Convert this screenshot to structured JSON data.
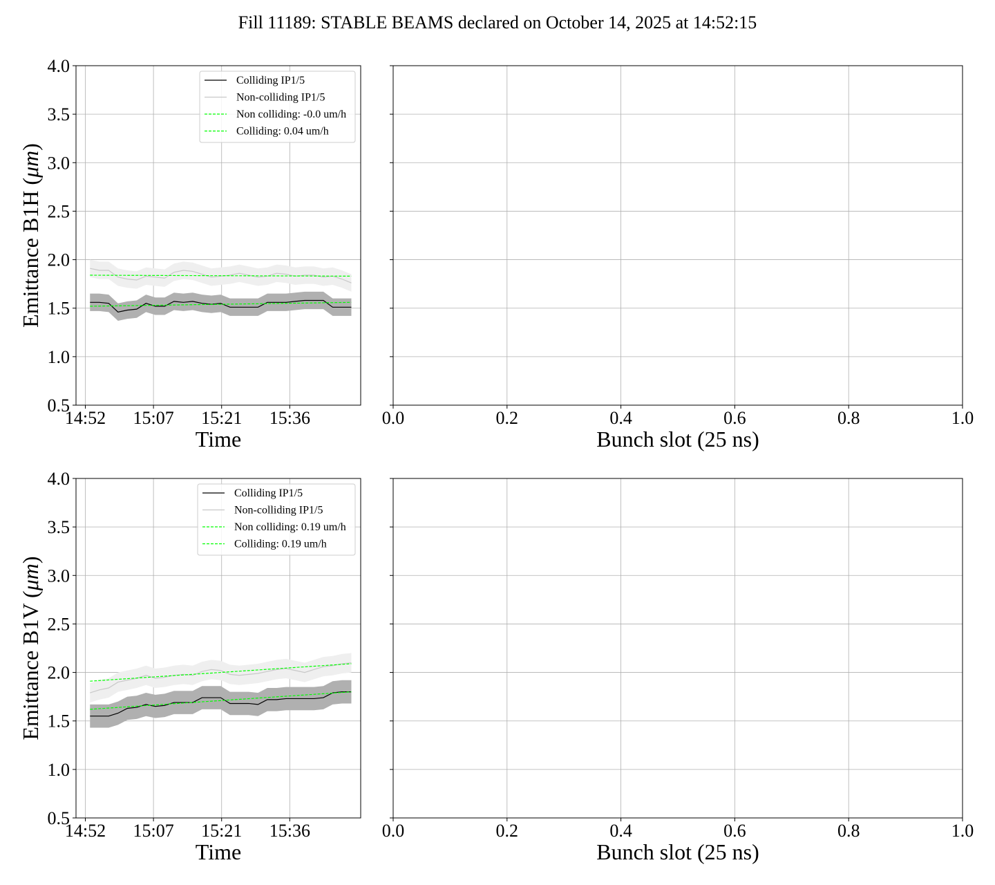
{
  "figure": {
    "title": "Fill 11189: STABLE BEAMS declared on October 14, 2025 at 14:52:15"
  },
  "chart_data": [
    {
      "id": "b1h-time",
      "type": "line",
      "xlabel": "Time",
      "ylabel": "Emittance B1H (μm)",
      "ylim": [
        0.5,
        4.0
      ],
      "yticks": [
        "0.5",
        "1.0",
        "1.5",
        "2.0",
        "2.5",
        "3.0",
        "3.5",
        "4.0"
      ],
      "xticks": [
        "14:52",
        "15:07",
        "15:21",
        "15:36"
      ],
      "xlim_minutes": [
        -2,
        59
      ],
      "grid": true,
      "legend_position": "top-right",
      "legend": [
        {
          "label": "Colliding IP1/5",
          "color": "#000000",
          "style": "solid"
        },
        {
          "label": "Non-colliding IP1/5",
          "color": "#c8c8c8",
          "style": "solid"
        },
        {
          "label": "Non colliding: -0.0 um/h",
          "color": "#00ff00",
          "style": "dashed"
        },
        {
          "label": "Colliding: 0.04 um/h",
          "color": "#00ff00",
          "style": "dashed"
        }
      ],
      "series": [
        {
          "name": "Colliding IP1/5",
          "color": "#000000",
          "band_color": "#b0b0b0",
          "x_minutes": [
            1,
            3,
            5,
            7,
            9,
            11,
            13,
            15,
            17,
            19,
            21,
            23,
            25,
            27,
            29,
            31,
            33,
            35,
            37,
            39,
            41,
            43,
            45,
            47,
            49,
            51,
            53,
            55,
            57
          ],
          "y": [
            1.56,
            1.56,
            1.55,
            1.46,
            1.48,
            1.49,
            1.55,
            1.52,
            1.52,
            1.57,
            1.56,
            1.57,
            1.55,
            1.54,
            1.55,
            1.51,
            1.51,
            1.51,
            1.51,
            1.56,
            1.56,
            1.56,
            1.57,
            1.58,
            1.58,
            1.58,
            1.51,
            1.51,
            1.51
          ],
          "band": 0.09
        },
        {
          "name": "Non-colliding IP1/5",
          "color": "#c8c8c8",
          "band_color": "#efefef",
          "x_minutes": [
            1,
            3,
            5,
            7,
            9,
            11,
            13,
            15,
            17,
            19,
            21,
            23,
            25,
            27,
            29,
            31,
            33,
            35,
            37,
            39,
            41,
            43,
            45,
            47,
            49,
            51,
            53,
            55,
            57
          ],
          "y": [
            1.91,
            1.89,
            1.89,
            1.82,
            1.8,
            1.79,
            1.83,
            1.82,
            1.81,
            1.87,
            1.89,
            1.88,
            1.85,
            1.82,
            1.83,
            1.84,
            1.86,
            1.84,
            1.82,
            1.83,
            1.86,
            1.85,
            1.83,
            1.84,
            1.84,
            1.82,
            1.83,
            1.8,
            1.76
          ],
          "band": 0.09
        },
        {
          "name": "Non colliding: -0.0 um/h",
          "color": "#00ff00",
          "dashed": true,
          "x_minutes": [
            1,
            57
          ],
          "y": [
            1.84,
            1.83
          ]
        },
        {
          "name": "Colliding: 0.04 um/h",
          "color": "#00ff00",
          "dashed": true,
          "x_minutes": [
            1,
            57
          ],
          "y": [
            1.52,
            1.56
          ]
        }
      ]
    },
    {
      "id": "b1h-bunch",
      "type": "scatter",
      "xlabel": "Bunch slot (25 ns)",
      "ylabel": "",
      "xlim": [
        0.0,
        1.0
      ],
      "ylim": [
        0.5,
        4.0
      ],
      "xticks": [
        "0.0",
        "0.2",
        "0.4",
        "0.6",
        "0.8",
        "1.0"
      ],
      "grid": true,
      "series": []
    },
    {
      "id": "b1v-time",
      "type": "line",
      "xlabel": "Time",
      "ylabel": "Emittance B1V (μm)",
      "ylim": [
        0.5,
        4.0
      ],
      "yticks": [
        "0.5",
        "1.0",
        "1.5",
        "2.0",
        "2.5",
        "3.0",
        "3.5",
        "4.0"
      ],
      "xticks": [
        "14:52",
        "15:07",
        "15:21",
        "15:36"
      ],
      "xlim_minutes": [
        -2,
        59
      ],
      "grid": true,
      "legend_position": "top-right",
      "legend": [
        {
          "label": "Colliding IP1/5",
          "color": "#000000",
          "style": "solid"
        },
        {
          "label": "Non-colliding IP1/5",
          "color": "#c8c8c8",
          "style": "solid"
        },
        {
          "label": "Non colliding: 0.19 um/h",
          "color": "#00ff00",
          "style": "dashed"
        },
        {
          "label": "Colliding: 0.19 um/h",
          "color": "#00ff00",
          "style": "dashed"
        }
      ],
      "series": [
        {
          "name": "Colliding IP1/5",
          "color": "#000000",
          "band_color": "#b0b0b0",
          "x_minutes": [
            1,
            3,
            5,
            7,
            9,
            11,
            13,
            15,
            17,
            19,
            21,
            23,
            25,
            27,
            29,
            31,
            33,
            35,
            37,
            39,
            41,
            43,
            45,
            47,
            49,
            51,
            53,
            55,
            57
          ],
          "y": [
            1.55,
            1.55,
            1.55,
            1.58,
            1.63,
            1.64,
            1.67,
            1.65,
            1.66,
            1.69,
            1.69,
            1.69,
            1.74,
            1.74,
            1.74,
            1.68,
            1.68,
            1.68,
            1.67,
            1.72,
            1.72,
            1.73,
            1.73,
            1.73,
            1.73,
            1.74,
            1.79,
            1.8,
            1.8
          ],
          "band": 0.12
        },
        {
          "name": "Non-colliding IP1/5",
          "color": "#c8c8c8",
          "band_color": "#efefef",
          "x_minutes": [
            1,
            3,
            5,
            7,
            9,
            11,
            13,
            15,
            17,
            19,
            21,
            23,
            25,
            27,
            29,
            31,
            33,
            35,
            37,
            39,
            41,
            43,
            45,
            47,
            49,
            51,
            53,
            55,
            57
          ],
          "y": [
            1.79,
            1.82,
            1.84,
            1.9,
            1.92,
            1.94,
            1.97,
            1.94,
            1.95,
            1.97,
            1.98,
            1.97,
            2.01,
            2.03,
            2.02,
            1.98,
            1.97,
            1.98,
            1.99,
            2.01,
            2.03,
            2.04,
            2.02,
            2.0,
            2.03,
            2.06,
            2.07,
            2.09,
            2.1
          ],
          "band": 0.1
        },
        {
          "name": "Non colliding: 0.19 um/h",
          "color": "#00ff00",
          "dashed": true,
          "x_minutes": [
            1,
            57
          ],
          "y": [
            1.91,
            2.09
          ]
        },
        {
          "name": "Colliding: 0.19 um/h",
          "color": "#00ff00",
          "dashed": true,
          "x_minutes": [
            1,
            57
          ],
          "y": [
            1.62,
            1.8
          ]
        }
      ]
    },
    {
      "id": "b1v-bunch",
      "type": "scatter",
      "xlabel": "Bunch slot (25 ns)",
      "ylabel": "",
      "xlim": [
        0.0,
        1.0
      ],
      "ylim": [
        0.5,
        4.0
      ],
      "xticks": [
        "0.0",
        "0.2",
        "0.4",
        "0.6",
        "0.8",
        "1.0"
      ],
      "grid": true,
      "series": []
    }
  ]
}
